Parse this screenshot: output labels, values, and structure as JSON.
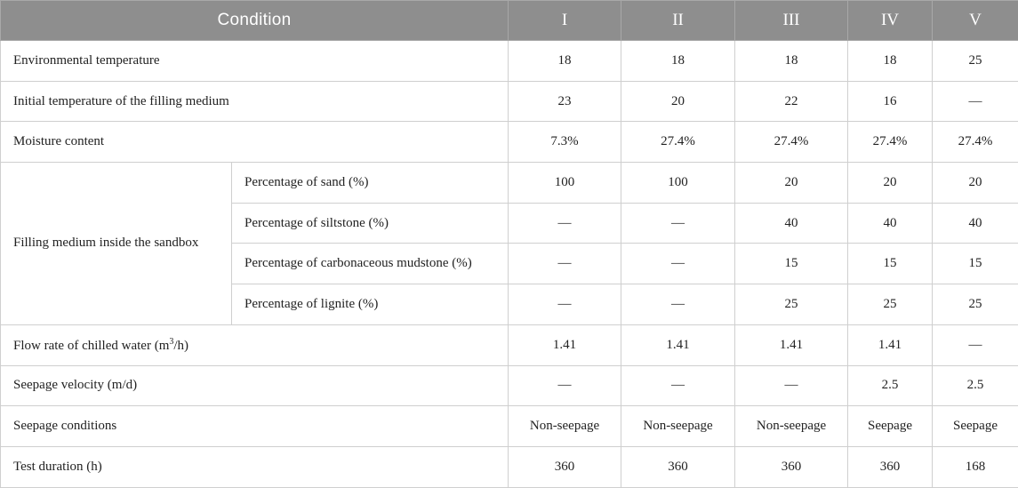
{
  "header": {
    "condition": "Condition",
    "columns": [
      "I",
      "II",
      "III",
      "IV",
      "V"
    ]
  },
  "rows": {
    "env_temp": {
      "label": "Environmental temperature",
      "values": [
        "18",
        "18",
        "18",
        "18",
        "25"
      ]
    },
    "init_temp": {
      "label": "Initial temperature of the filling medium",
      "values": [
        "23",
        "20",
        "22",
        "16",
        "—"
      ]
    },
    "moisture": {
      "label": "Moisture content",
      "values": [
        "7.3%",
        "27.4%",
        "27.4%",
        "27.4%",
        "27.4%"
      ]
    },
    "filling": {
      "label": "Filling medium inside the sandbox",
      "sub": [
        {
          "label": "Percentage of sand (%)",
          "values": [
            "100",
            "100",
            "20",
            "20",
            "20"
          ]
        },
        {
          "label": "Percentage of siltstone (%)",
          "values": [
            "—",
            "—",
            "40",
            "40",
            "40"
          ]
        },
        {
          "label": "Percentage of carbonaceous mudstone (%)",
          "values": [
            "—",
            "—",
            "15",
            "15",
            "15"
          ]
        },
        {
          "label": "Percentage of lignite (%)",
          "values": [
            "—",
            "—",
            "25",
            "25",
            "25"
          ]
        }
      ]
    },
    "flow_rate": {
      "label_prefix": "Flow rate of chilled water (m",
      "label_sup": "3",
      "label_suffix": "/h)",
      "values": [
        "1.41",
        "1.41",
        "1.41",
        "1.41",
        "—"
      ]
    },
    "seepage_vel": {
      "label": "Seepage velocity (m/d)",
      "values": [
        "—",
        "—",
        "—",
        "2.5",
        "2.5"
      ]
    },
    "seepage_cond": {
      "label": "Seepage conditions",
      "values": [
        "Non-seepage",
        "Non-seepage",
        "Non-seepage",
        "Seepage",
        "Seepage"
      ]
    },
    "duration": {
      "label": "Test duration (h)",
      "values": [
        "360",
        "360",
        "360",
        "360",
        "168"
      ]
    }
  }
}
